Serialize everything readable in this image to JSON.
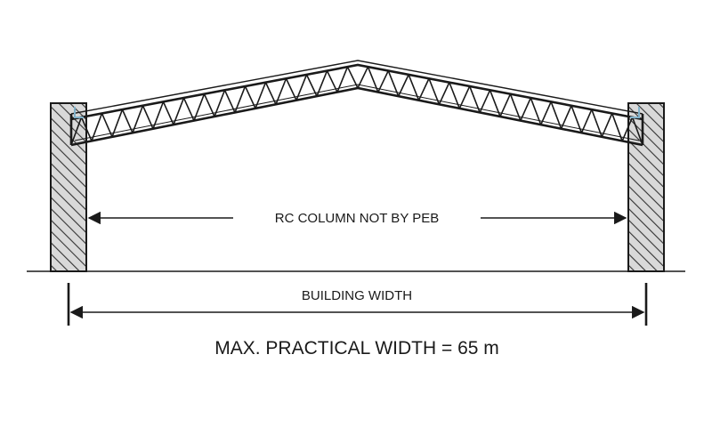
{
  "labels": {
    "inner_span": "RC COLUMN NOT BY PEB",
    "building_width": "BUILDING WIDTH",
    "max_width": "MAX. PRACTICAL WIDTH = 65 m"
  },
  "colors": {
    "line": "#1a1a1a",
    "hatch": "#333333",
    "column_fill": "#d9d9d9",
    "gutter": "#7fb0c8",
    "background": "#ffffff"
  }
}
